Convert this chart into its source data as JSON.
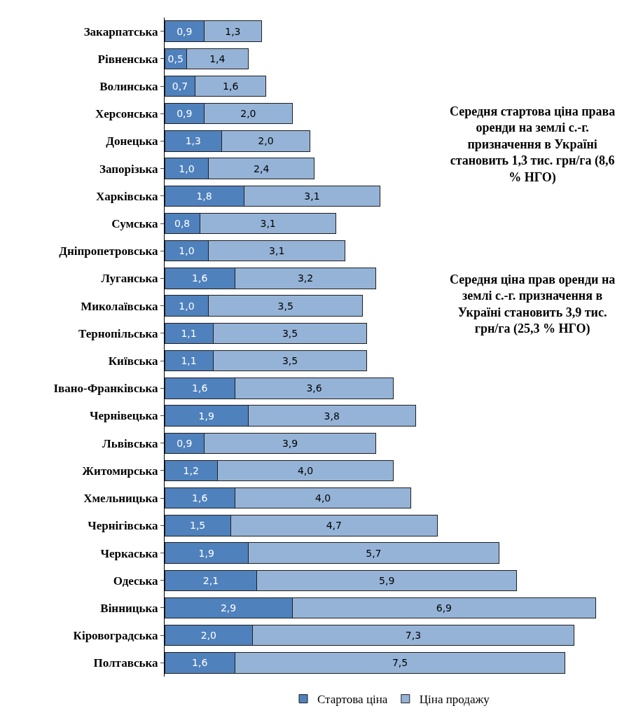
{
  "chart_data": {
    "type": "bar",
    "orientation": "horizontal",
    "stacked": true,
    "legend": "bottom",
    "categories": [
      "Закарпатська",
      "Рівненська",
      "Волинська",
      "Херсонська",
      "Донецька",
      "Запорізька",
      "Харківська",
      "Сумська",
      "Дніпропетровська",
      "Луганська",
      "Миколаївська",
      "Тернопільська",
      "Київська",
      "Івано-Франківська",
      "Чернівецька",
      "Львівська",
      "Житомирська",
      "Хмельницька",
      "Чернігівська",
      "Черкаська",
      "Одеська",
      "Вінницька",
      "Кіровоградська",
      "Полтавська"
    ],
    "series": [
      {
        "name": "Стартова ціна",
        "color": "#4f81bd",
        "values": [
          0.9,
          0.5,
          0.7,
          0.9,
          1.3,
          1.0,
          1.8,
          0.8,
          1.0,
          1.6,
          1.0,
          1.1,
          1.1,
          1.6,
          1.9,
          0.9,
          1.2,
          1.6,
          1.5,
          1.9,
          2.1,
          2.9,
          2.0,
          1.6
        ],
        "value_labels": [
          "0,9",
          "0,5",
          "0,7",
          "0,9",
          "1,3",
          "1,0",
          "1,8",
          "0,8",
          "1,0",
          "1,6",
          "1,0",
          "1,1",
          "1,1",
          "1,6",
          "1,9",
          "0,9",
          "1,2",
          "1,6",
          "1,5",
          "1,9",
          "2,1",
          "2,9",
          "2,0",
          "1,6"
        ]
      },
      {
        "name": "Ціна продажу",
        "color": "#95b3d7",
        "values": [
          1.3,
          1.4,
          1.6,
          2.0,
          2.0,
          2.4,
          3.1,
          3.1,
          3.1,
          3.2,
          3.5,
          3.5,
          3.5,
          3.6,
          3.8,
          3.9,
          4.0,
          4.0,
          4.7,
          5.7,
          5.9,
          6.9,
          7.3,
          7.5
        ],
        "value_labels": [
          "1,3",
          "1,4",
          "1,6",
          "2,0",
          "2,0",
          "2,4",
          "3,1",
          "3,1",
          "3,1",
          "3,2",
          "3,5",
          "3,5",
          "3,5",
          "3,6",
          "3,8",
          "3,9",
          "4,0",
          "4,0",
          "4,7",
          "5,7",
          "5,9",
          "6,9",
          "7,3",
          "7,5"
        ]
      }
    ],
    "annotations": [
      "Середня стартова ціна права оренди на землі с.-г. призначення в Україні становить 1,3 тис. грн/га (8,6 % НГО)",
      "Середня ціна прав оренди на землі с.-г. призначення в Україні становить 3,9 тис. грн/га (25,3 % НГО)"
    ]
  }
}
